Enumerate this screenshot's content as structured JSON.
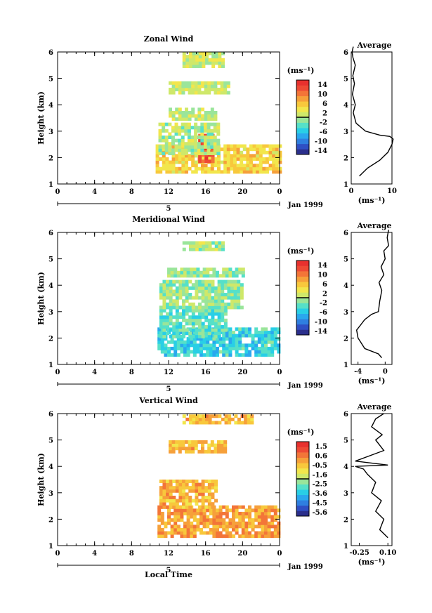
{
  "figure": {
    "xlabel_bottom": "Local Time",
    "date_label": "Jan 1999",
    "date_marker": "5"
  },
  "chart_data": [
    {
      "type": "heatmap",
      "title": "Zonal Wind",
      "ylabel": "Height (km)",
      "xlim": [
        0,
        24
      ],
      "ylim": [
        1,
        6
      ],
      "x_ticks": [
        "0",
        "4",
        "8",
        "12",
        "16",
        "20",
        "0"
      ],
      "y_ticks": [
        "1",
        "2",
        "3",
        "4",
        "5",
        "6"
      ],
      "colorbar": {
        "unit": "(ms⁻¹)",
        "labels": [
          "14",
          "10",
          "6",
          "2",
          "-2",
          "-6",
          "-10",
          "-14"
        ],
        "min": -16,
        "max": 16
      },
      "data_regions": [
        {
          "x": [
            10.6,
            24
          ],
          "y": [
            1.4,
            2.5
          ],
          "value": 5
        },
        {
          "x": [
            15.2,
            16.8
          ],
          "y": [
            1.8,
            2.9
          ],
          "value": 12
        },
        {
          "x": [
            10.9,
            17.5
          ],
          "y": [
            2.1,
            3.3
          ],
          "value": 0
        },
        {
          "x": [
            12,
            17
          ],
          "y": [
            3.4,
            3.8
          ],
          "value": 1
        },
        {
          "x": [
            12,
            18.5
          ],
          "y": [
            4.4,
            4.8
          ],
          "value": 1
        },
        {
          "x": [
            13.5,
            17.7
          ],
          "y": [
            5.4,
            5.9
          ],
          "value": 1
        }
      ],
      "profile": {
        "title": "Average",
        "xlabel": "(ms⁻¹)",
        "xlim": [
          0,
          10
        ],
        "x_ticks": [
          "0",
          "10"
        ],
        "y_ticks": [
          "1",
          "2",
          "3",
          "4",
          "5",
          "6"
        ],
        "x": [
          2,
          4,
          7,
          9,
          10,
          10.3,
          9.5,
          7,
          3.5,
          1.2,
          0.5,
          1,
          0.3,
          0.8,
          0.4,
          1,
          0.4,
          0.2,
          0.5
        ],
        "y": [
          1.3,
          1.6,
          1.9,
          2.2,
          2.5,
          2.7,
          2.8,
          2.85,
          3,
          3.3,
          3.7,
          4,
          4.4,
          4.8,
          5.1,
          5.5,
          5.8,
          6,
          6.2
        ]
      }
    },
    {
      "type": "heatmap",
      "title": "Meridional Wind",
      "ylabel": "Height (km)",
      "xlim": [
        0,
        24
      ],
      "ylim": [
        1,
        6
      ],
      "x_ticks": [
        "0",
        "4",
        "8",
        "12",
        "16",
        "20",
        "0"
      ],
      "y_ticks": [
        "1",
        "2",
        "3",
        "4",
        "5",
        "6"
      ],
      "colorbar": {
        "unit": "(ms⁻¹)",
        "labels": [
          "14",
          "10",
          "6",
          "2",
          "-2",
          "-6",
          "-10",
          "-14"
        ],
        "min": -16,
        "max": 16
      },
      "data_regions": [
        {
          "x": [
            10.8,
            24
          ],
          "y": [
            1.3,
            2.3
          ],
          "value": -5
        },
        {
          "x": [
            11,
            18
          ],
          "y": [
            2,
            3.2
          ],
          "value": -3
        },
        {
          "x": [
            11,
            20
          ],
          "y": [
            3.1,
            4.1
          ],
          "value": -1
        },
        {
          "x": [
            11.5,
            20
          ],
          "y": [
            4.3,
            4.6
          ],
          "value": -1
        },
        {
          "x": [
            13.5,
            18
          ],
          "y": [
            5.3,
            5.6
          ],
          "value": 0
        }
      ],
      "profile": {
        "title": "Average",
        "xlabel": "(ms⁻¹)",
        "xlim": [
          -5,
          1
        ],
        "x_ticks": [
          "-4",
          "0"
        ],
        "y_ticks": [
          "1",
          "2",
          "3",
          "4",
          "5",
          "6"
        ],
        "x": [
          -0.5,
          -1,
          -3,
          -4,
          -4.2,
          -3,
          -2,
          -1,
          -0.8,
          -0.5,
          -0.9,
          -0.2,
          -0.6,
          0,
          -0.2,
          0.5,
          0.3,
          0.5
        ],
        "y": [
          1.25,
          1.4,
          1.6,
          2,
          2.3,
          2.7,
          2.9,
          3,
          3.4,
          3.8,
          4.1,
          4.4,
          4.7,
          5,
          5.3,
          5.5,
          5.8,
          6.1
        ]
      }
    },
    {
      "type": "heatmap",
      "title": "Vertical Wind",
      "ylabel": "Height (km)",
      "xlim": [
        0,
        24
      ],
      "ylim": [
        1,
        6
      ],
      "x_ticks": [
        "0",
        "4",
        "8",
        "12",
        "16",
        "20",
        "0"
      ],
      "y_ticks": [
        "1",
        "2",
        "3",
        "4",
        "5",
        "6"
      ],
      "colorbar": {
        "unit": "(ms⁻¹)",
        "labels": [
          "1.5",
          "0.6",
          "-0.5",
          "-1.6",
          "-2.5",
          "-3.6",
          "-4.5",
          "-5.6"
        ],
        "min": -6,
        "max": 2
      },
      "data_regions": [
        {
          "x": [
            10.8,
            24
          ],
          "y": [
            1.3,
            2.5
          ],
          "value": 0
        },
        {
          "x": [
            11,
            17
          ],
          "y": [
            2.4,
            3.5
          ],
          "value": -0.3
        },
        {
          "x": [
            12,
            18
          ],
          "y": [
            4.5,
            4.9
          ],
          "value": -0.3
        },
        {
          "x": [
            13.5,
            21
          ],
          "y": [
            5.6,
            5.9
          ],
          "value": -0.3
        }
      ],
      "profile": {
        "title": "Average",
        "xlabel": "(ms⁻¹)",
        "xlim": [
          -0.35,
          0.15
        ],
        "x_ticks": [
          "-0.25",
          "0.10"
        ],
        "y_ticks": [
          "1",
          "2",
          "3",
          "4",
          "5",
          "6"
        ],
        "x": [
          0.1,
          0,
          0.05,
          -0.05,
          0.02,
          -0.1,
          -0.05,
          -0.15,
          -0.2,
          -0.3,
          0.1,
          -0.3,
          0.05,
          -0.05,
          0.03,
          -0.1,
          -0.05,
          0.05
        ],
        "y": [
          1.3,
          1.6,
          2,
          2.3,
          2.7,
          3,
          3.4,
          3.7,
          3.9,
          4,
          4.05,
          4.2,
          4.6,
          5,
          5.2,
          5.5,
          5.8,
          6
        ]
      }
    }
  ]
}
